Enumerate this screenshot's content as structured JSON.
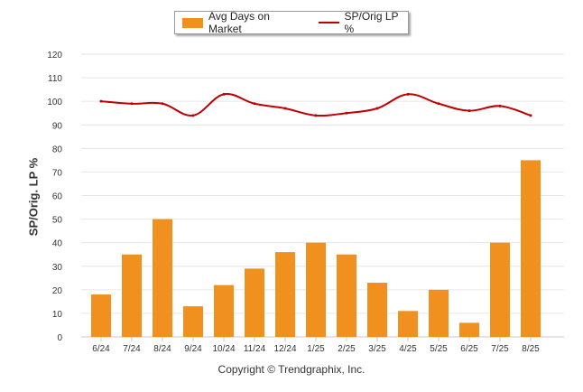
{
  "chart_data": {
    "type": "bar",
    "categories": [
      "6/24",
      "7/24",
      "8/24",
      "9/24",
      "10/24",
      "11/24",
      "12/24",
      "1/25",
      "2/25",
      "3/25",
      "4/25",
      "5/25",
      "6/25",
      "7/25",
      "8/25"
    ],
    "series": [
      {
        "name": "Avg Days on Market",
        "type": "bar",
        "color": "#f0901e",
        "values": [
          18,
          35,
          50,
          13,
          22,
          29,
          36,
          40,
          35,
          23,
          11,
          20,
          6,
          40,
          75
        ]
      },
      {
        "name": "SP/Orig LP %",
        "type": "line",
        "color": "#c00000",
        "values": [
          100,
          99,
          99,
          94,
          103,
          99,
          97,
          94,
          95,
          97,
          103,
          99,
          96,
          98,
          94
        ]
      }
    ],
    "ylabel": "SP/Orig. LP %",
    "ylim": [
      0,
      120
    ],
    "yticks": [
      0,
      10,
      20,
      30,
      40,
      50,
      60,
      70,
      80,
      90,
      100,
      110,
      120
    ],
    "grid": true,
    "legend_position": "top-center"
  },
  "footer": {
    "copyright": "Copyright © Trendgraphix, Inc."
  }
}
